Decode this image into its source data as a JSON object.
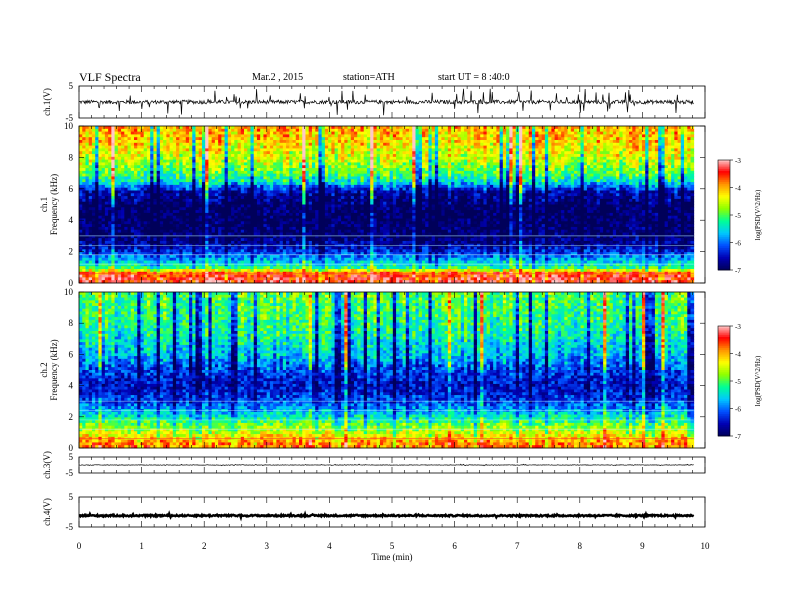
{
  "header": {
    "title": "VLF Spectra",
    "date": "Mar.2 , 2015",
    "station": "station=ATH",
    "start": "start UT = 8 :40:0"
  },
  "chart_data": [
    {
      "type": "line",
      "panel": "ch1-waveform",
      "ylabel": "ch.1(V)",
      "ylim": [
        -5,
        5
      ],
      "yticks": [
        "5",
        "-5"
      ],
      "x_range_min": [
        0,
        9.82
      ],
      "baseline_v": 0.0,
      "noise_v": 0.6,
      "spike_v": 2.5
    },
    {
      "type": "heatmap",
      "panel": "ch1-spectrogram",
      "ylabel_top": "ch.1",
      "ylabel": "Frequency (kHz)",
      "ylim_khz": [
        0,
        10
      ],
      "yticks": [
        "0",
        "2",
        "4",
        "6",
        "8",
        "10"
      ],
      "x_range_min": [
        0,
        9.82
      ],
      "colorbar": {
        "label": "log(PSD(V^2/Hz)",
        "ticks": [
          "-3",
          "-4",
          "-5",
          "-6",
          "-7"
        ],
        "range": [
          -7,
          -3
        ]
      },
      "freq_profile_khz": [
        0.3,
        0.6,
        1,
        2,
        2.5,
        3,
        4,
        5,
        5.8,
        6.5,
        7,
        8,
        9,
        10
      ],
      "freq_profile_logpsd": [
        -3.4,
        -3.6,
        -5.2,
        -6.3,
        -6.7,
        -6.9,
        -7,
        -7,
        -6.6,
        -5.4,
        -5,
        -4.5,
        -4.2,
        -4
      ]
    },
    {
      "type": "heatmap",
      "panel": "ch2-spectrogram",
      "ylabel_top": "ch.2",
      "ylabel": "Frequency (kHz)",
      "ylim_khz": [
        0,
        10
      ],
      "yticks": [
        "0",
        "2",
        "4",
        "6",
        "8",
        "10"
      ],
      "x_range_min": [
        0,
        9.82
      ],
      "colorbar": {
        "label": "log(PSD(V^2/Hz)",
        "ticks": [
          "-3",
          "-4",
          "-5",
          "-6",
          "-7"
        ],
        "range": [
          -7,
          -3
        ]
      },
      "freq_profile_khz": [
        0.3,
        1,
        1.5,
        2,
        3,
        4,
        5,
        6,
        7,
        8,
        9,
        10
      ],
      "freq_profile_logpsd": [
        -3.8,
        -4.5,
        -4.9,
        -5.4,
        -6.2,
        -6.5,
        -6.2,
        -5.7,
        -5.4,
        -5.2,
        -5.1,
        -5
      ]
    },
    {
      "type": "line",
      "panel": "ch3-waveform",
      "ylabel": "ch.3(V)",
      "ylim": [
        -5,
        5
      ],
      "yticks": [
        "5",
        "-5"
      ],
      "x_range_min": [
        0,
        9.82
      ],
      "baseline_v": 0.0,
      "noise_v": 0.15,
      "spike_v": 0.3
    },
    {
      "type": "line",
      "panel": "ch4-waveform",
      "ylabel": "ch.4(V)",
      "ylim": [
        -5,
        5
      ],
      "yticks": [
        "5",
        "-5"
      ],
      "x_range_min": [
        0,
        9.82
      ],
      "baseline_v": -1.2,
      "noise_v": 0.25,
      "spike_v": 0.3
    }
  ],
  "x_axis": {
    "label": "Time (min)",
    "xlim": [
      0,
      10
    ],
    "ticks": [
      "0",
      "1",
      "2",
      "3",
      "4",
      "5",
      "6",
      "7",
      "8",
      "9",
      "10"
    ]
  },
  "colors": {
    "axis": "#000000",
    "trace": "#000000",
    "background": "#ffffff",
    "colormap": [
      "#00005a",
      "#0000b4",
      "#0050ff",
      "#00c8ff",
      "#00ff96",
      "#8cff00",
      "#ffff00",
      "#ff9600",
      "#ff0000",
      "#ffc8c8"
    ]
  }
}
